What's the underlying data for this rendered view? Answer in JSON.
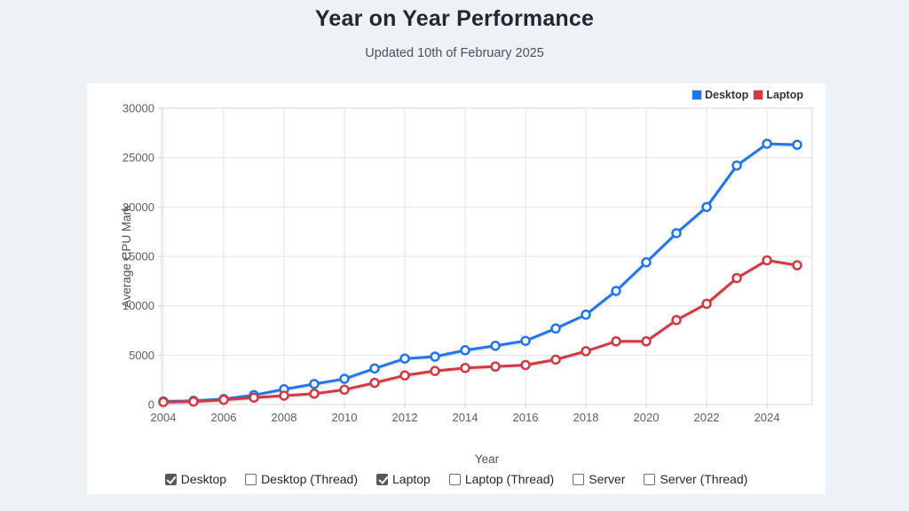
{
  "header": {
    "title": "Year on Year Performance",
    "subtitle": "Updated 10th of February 2025"
  },
  "chart_data": {
    "type": "line",
    "title": "Year on Year Performance",
    "xlabel": "Year",
    "ylabel": "Average CPU Mark",
    "x": [
      2004,
      2005,
      2006,
      2007,
      2008,
      2009,
      2010,
      2011,
      2012,
      2013,
      2014,
      2015,
      2016,
      2017,
      2018,
      2019,
      2020,
      2021,
      2022,
      2023,
      2024,
      2025
    ],
    "x_ticks": [
      2004,
      2006,
      2008,
      2010,
      2012,
      2014,
      2016,
      2018,
      2020,
      2022,
      2024
    ],
    "y_ticks": [
      0,
      5000,
      10000,
      15000,
      20000,
      25000,
      30000
    ],
    "ylim": [
      0,
      30000
    ],
    "grid": true,
    "legend_position": "top-right",
    "series": [
      {
        "name": "Desktop",
        "color": "#2176f0",
        "values": [
          310,
          380,
          560,
          950,
          1550,
          2080,
          2600,
          3650,
          4650,
          4850,
          5500,
          5950,
          6450,
          7700,
          9100,
          11500,
          14400,
          17350,
          20000,
          24200,
          26400,
          26300
        ]
      },
      {
        "name": "Laptop",
        "color": "#d43843",
        "values": [
          250,
          300,
          480,
          700,
          900,
          1100,
          1500,
          2200,
          2950,
          3400,
          3700,
          3850,
          4000,
          4550,
          5400,
          6400,
          6400,
          8550,
          10200,
          12800,
          14600,
          14100
        ]
      }
    ]
  },
  "controls": {
    "items": [
      {
        "label": "Desktop",
        "checked": true
      },
      {
        "label": "Desktop (Thread)",
        "checked": false
      },
      {
        "label": "Laptop",
        "checked": true
      },
      {
        "label": "Laptop (Thread)",
        "checked": false
      },
      {
        "label": "Server",
        "checked": false
      },
      {
        "label": "Server (Thread)",
        "checked": false
      }
    ]
  },
  "colors": {
    "background": "#edf2f7",
    "card": "#ffffff",
    "grid": "#e3e6e9",
    "plot_border": "#d3d7da",
    "desktop_series": "#2176f0",
    "laptop_series": "#d43843"
  }
}
